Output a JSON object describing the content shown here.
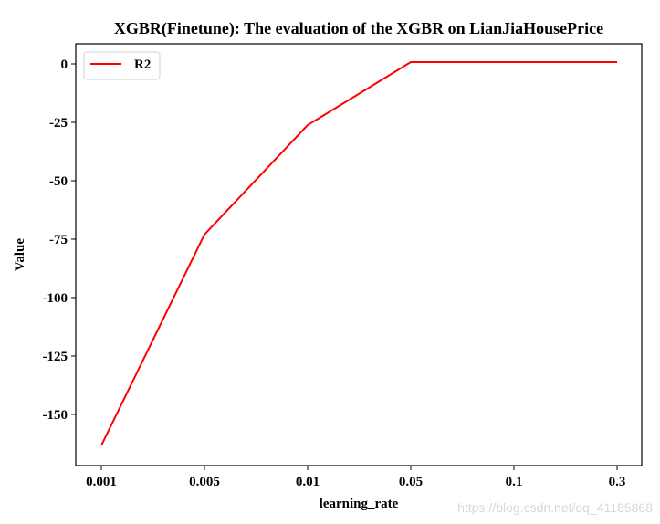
{
  "chart_data": {
    "type": "line",
    "title": "XGBR(Finetune): The evaluation of the XGBR on LianJiaHousePrice",
    "xlabel": "learning_rate",
    "ylabel": "Value",
    "categories": [
      "0.001",
      "0.005",
      "0.01",
      "0.05",
      "0.1",
      "0.3"
    ],
    "series": [
      {
        "name": "R2",
        "color": "#ff0000",
        "values": [
          -163.3,
          -73.0,
          -26.2,
          0.8,
          0.8,
          0.8
        ]
      }
    ],
    "yticks": [
      0,
      -25,
      -50,
      -75,
      -100,
      -125,
      -150
    ],
    "ylim": [
      -171.9,
      8.6
    ],
    "grid": false,
    "legend": "top-left"
  },
  "watermark": "https://blog.csdn.net/qq_41185868"
}
